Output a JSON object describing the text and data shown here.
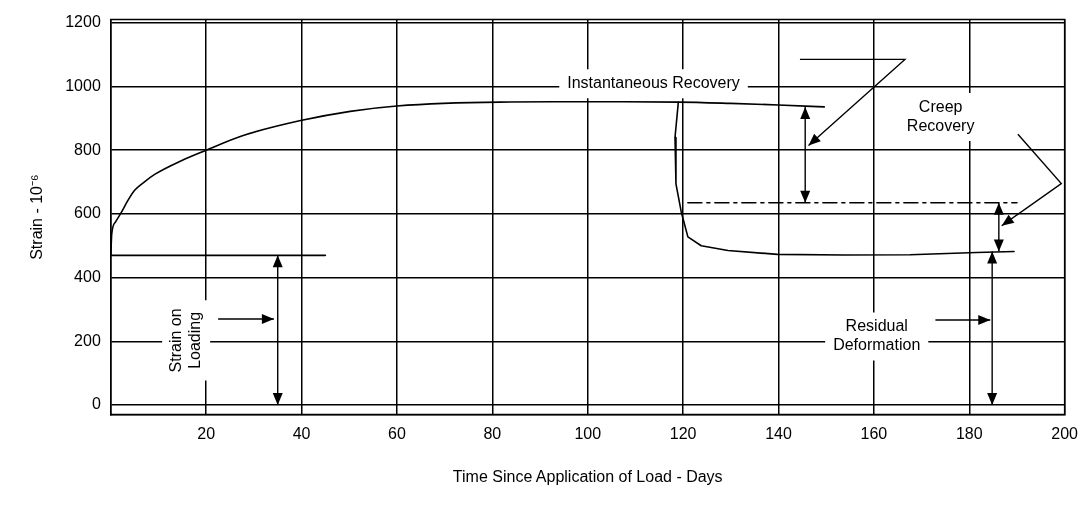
{
  "chart_data": {
    "type": "line",
    "xlabel": "Time Since Application of Load - Days",
    "ylabel": "Strain - 10⁻⁶",
    "xlim": [
      0,
      200
    ],
    "xticks": [
      20,
      40,
      60,
      80,
      100,
      120,
      140,
      160,
      180,
      200
    ],
    "ylim": [
      -30,
      1210
    ],
    "yticks": [
      0,
      200,
      400,
      600,
      800,
      1000,
      1200
    ],
    "grid": true,
    "legend": false,
    "marker": "none",
    "series": [
      {
        "color": "#000000",
        "x": [
          0,
          0.2,
          1,
          2.3,
          3.5,
          5,
          7,
          9.2,
          14.8,
          20,
          27.3,
          39.8,
          50.2,
          60,
          81.5,
          100,
          119,
          130,
          140,
          149.6
        ],
        "values": [
          470,
          537,
          575,
          607,
          640,
          674,
          700,
          724,
          767,
          800,
          844,
          893,
          922,
          939,
          951,
          952,
          951,
          947,
          942,
          936
        ]
      },
      {
        "color": "#000000",
        "x": [
          119,
          118.3,
          118.5,
          119.6,
          121,
          123.8,
          129.4,
          139.8,
          153.7,
          167.6,
          181.5,
          189.4
        ],
        "values": [
          951,
          840,
          694,
          607,
          528,
          500,
          485,
          473,
          471,
          472,
          479,
          482
        ]
      },
      {
        "color": "#000000",
        "x": [
          0,
          45
        ],
        "values": [
          470,
          470
        ]
      },
      {
        "color": "#000000",
        "x": [
          121,
          190
        ],
        "values": [
          635,
          635
        ],
        "line_style": "dashed"
      }
    ],
    "annotations": [
      "Instantaneous Recovery",
      "Creep Recovery",
      "Residual Deformation",
      "Strain on Loading"
    ]
  }
}
